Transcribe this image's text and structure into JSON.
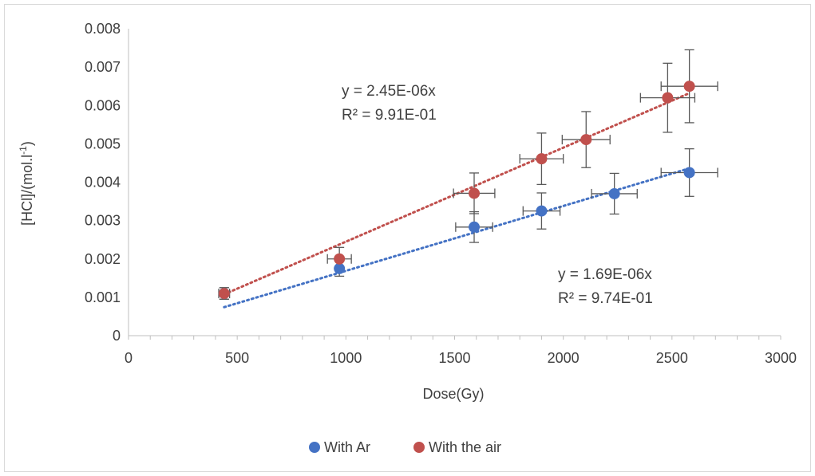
{
  "chart_data": {
    "type": "scatter",
    "title": "",
    "xlabel": "Dose(Gy)",
    "ylabel": "[HCl]/(mol.l",
    "ylabel_sup": "-1",
    "ylabel_end": ")",
    "xlim": [
      0,
      3000
    ],
    "ylim": [
      0,
      0.008
    ],
    "x_ticks": [
      0,
      500,
      1000,
      1500,
      2000,
      2500,
      3000
    ],
    "y_ticks": [
      0,
      0.001,
      0.002,
      0.003,
      0.004,
      0.005,
      0.006,
      0.007,
      0.008
    ],
    "x_tick_labels": [
      "0",
      "500",
      "1000",
      "1500",
      "2000",
      "2500",
      "3000"
    ],
    "y_tick_labels": [
      "0",
      "0.001",
      "0.002",
      "0.003",
      "0.004",
      "0.005",
      "0.006",
      "0.007",
      "0.008"
    ],
    "grid": false,
    "legend_position": "bottom",
    "series": [
      {
        "name": "With Ar",
        "color": "#4472C4",
        "trendline_color": "#4472C4",
        "x": [
          440,
          970,
          1590,
          1900,
          2235,
          2580
        ],
        "y": [
          0.0011,
          0.00175,
          0.00283,
          0.00325,
          0.0037,
          0.00425
        ],
        "x_err": [
          0,
          0,
          85,
          85,
          105,
          130
        ],
        "y_err": [
          0.00015,
          0.0002,
          0.0004,
          0.00047,
          0.00053,
          0.00062
        ],
        "trendline": {
          "slope": 1.69e-06,
          "x_start": 440,
          "x_end": 2580
        },
        "equation": "y = 1.69E-06x",
        "r_squared": "R² = 9.74E-01"
      },
      {
        "name": "With the air",
        "color": "#C0504D",
        "trendline_color": "#C0504D",
        "x": [
          440,
          970,
          1590,
          1900,
          2105,
          2480,
          2580
        ],
        "y": [
          0.0011,
          0.002,
          0.00371,
          0.00461,
          0.00511,
          0.0062,
          0.0065
        ],
        "x_err": [
          25,
          55,
          95,
          100,
          110,
          125,
          130
        ],
        "y_err": [
          0.00015,
          0.0003,
          0.00053,
          0.00067,
          0.00073,
          0.0009,
          0.00095
        ],
        "trendline": {
          "slope": 2.45e-06,
          "x_start": 440,
          "x_end": 2580
        },
        "equation": "y = 2.45E-06x",
        "r_squared": "R² = 9.91E-01"
      }
    ]
  }
}
